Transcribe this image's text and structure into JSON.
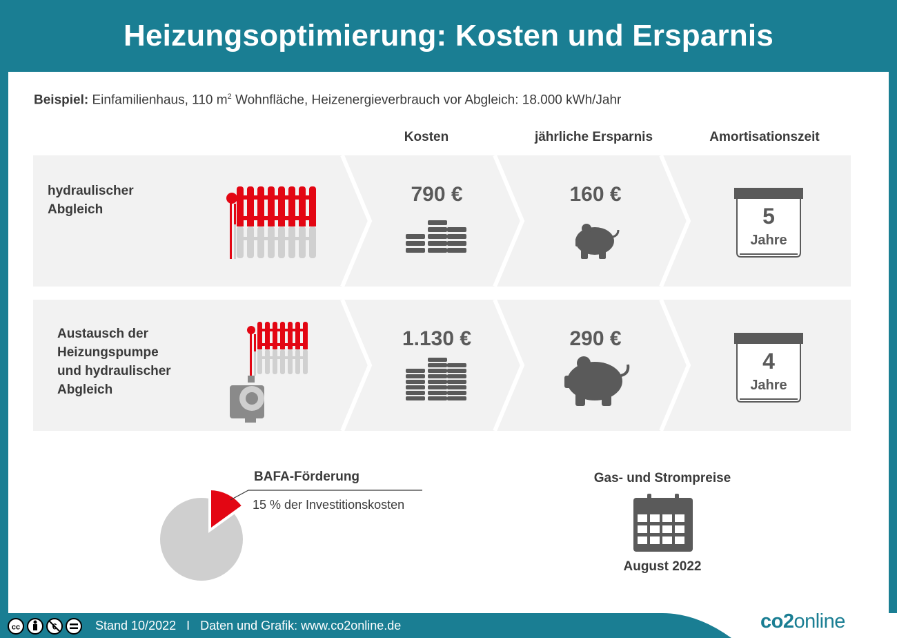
{
  "title": "Heizungsoptimierung: Kosten und Ersparnis",
  "example": {
    "label": "Beispiel:",
    "text_before_sup": "Einfamilienhaus, 110 m",
    "sup": "2",
    "text_after_sup": " Wohnfläche, Heizenergieverbrauch vor Abgleich: 18.000 kWh/Jahr"
  },
  "columns": {
    "cost": "Kosten",
    "savings": "jährliche Ersparnis",
    "payback": "Amortisationszeit"
  },
  "rows": [
    {
      "label_lines": [
        "hydraulischer",
        "Abgleich"
      ],
      "cost": "790 €",
      "savings": "160 €",
      "years": "5",
      "unit": "Jahre"
    },
    {
      "label_lines": [
        "Austausch der",
        "Heizungspumpe",
        "und hydraulischer",
        "Abgleich"
      ],
      "cost": "1.130 €",
      "savings": "290 €",
      "years": "4",
      "unit": "Jahre"
    }
  ],
  "bafa": {
    "title": "BAFA-Förderung",
    "text": "15 % der Investitionskosten",
    "share": 0.15
  },
  "prices": {
    "title": "Gas- und Strompreise",
    "date": "August 2022"
  },
  "footer": {
    "text": "Stand 10/2022   I   Daten und Grafik: www.co2online.de",
    "logo_bold": "co2",
    "logo_thin": "online"
  },
  "colors": {
    "teal": "#1a7e93",
    "red": "#e30613",
    "gray": "#5a5a5a",
    "light_gray": "#cfcfcf",
    "row_bg": "#f2f2f2"
  },
  "icons": {
    "license": [
      "cc-icon",
      "by-icon",
      "nc-icon",
      "nd-icon"
    ],
    "radiator": "radiator-icon",
    "pump": "pump-icon",
    "coins": "coin-stack-icon",
    "piggy": "piggy-bank-icon",
    "calendar": "calendar-icon"
  }
}
